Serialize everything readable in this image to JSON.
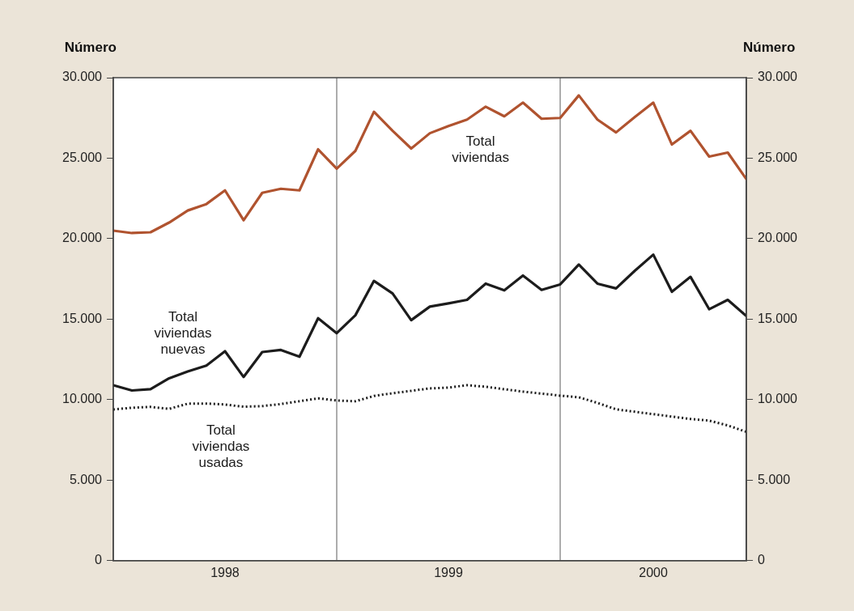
{
  "chart_data": {
    "type": "line",
    "ylabel": "Número",
    "y2label": "Número",
    "x": [
      "1998-01",
      "1998-02",
      "1998-03",
      "1998-04",
      "1998-05",
      "1998-06",
      "1998-07",
      "1998-08",
      "1998-09",
      "1998-10",
      "1998-11",
      "1998-12",
      "1999-01",
      "1999-02",
      "1999-03",
      "1999-04",
      "1999-05",
      "1999-06",
      "1999-07",
      "1999-08",
      "1999-09",
      "1999-10",
      "1999-11",
      "1999-12",
      "2000-01",
      "2000-02",
      "2000-03",
      "2000-04",
      "2000-05",
      "2000-06",
      "2000-07",
      "2000-08",
      "2000-09",
      "2000-10",
      "2000-11"
    ],
    "xlim": [
      "1998-01",
      "2000-11"
    ],
    "xticks": [
      {
        "value": "1998-07",
        "label": "1998"
      },
      {
        "value": "1999-07",
        "label": "1999"
      },
      {
        "value": "2000-06",
        "label": "2000"
      }
    ],
    "ylim": [
      0,
      30000
    ],
    "yticks": [
      0,
      {
        "value": 5000,
        "label": "5.000"
      },
      {
        "value": 10000,
        "label": "10.000"
      },
      {
        "value": 15000,
        "label": "15.000"
      },
      {
        "value": 20000,
        "label": "20.000"
      },
      {
        "value": 25000,
        "label": "25.000"
      },
      {
        "value": 30000,
        "label": "30.000"
      }
    ],
    "y2lim": [
      0,
      30000
    ],
    "y2ticks": [
      0,
      {
        "value": 5000,
        "label": "5.000"
      },
      {
        "value": 10000,
        "label": "10.000"
      },
      {
        "value": 15000,
        "label": "15.000"
      },
      {
        "value": 20000,
        "label": "20.000"
      },
      {
        "value": 25000,
        "label": "25.000"
      },
      {
        "value": 30000,
        "label": "30.000"
      }
    ],
    "ref_lines": [
      {
        "axis": "x",
        "value": "1999-01",
        "color": "#777777"
      },
      {
        "axis": "x",
        "value": "2000-01",
        "color": "#777777"
      }
    ],
    "grid": false,
    "legend": false,
    "marker": "none",
    "series": [
      {
        "name": "Total viviendas",
        "color": "#b0532f",
        "line_style": "solid",
        "values": [
          20500,
          20350,
          20400,
          21000,
          21750,
          22150,
          23000,
          21150,
          22850,
          23100,
          23000,
          25550,
          24350,
          25450,
          27880,
          26700,
          25600,
          26550,
          27000,
          27400,
          28200,
          27600,
          28450,
          27450,
          27500,
          28900,
          27400,
          26600,
          27550,
          28450,
          25850,
          26700,
          25100,
          25350,
          23700
        ]
      },
      {
        "name": "Total viviendas nuevas",
        "color": "#1c1c1c",
        "line_style": "solid",
        "values": [
          10900,
          10570,
          10650,
          11330,
          11750,
          12120,
          13010,
          11410,
          12960,
          13090,
          12670,
          15060,
          14130,
          15240,
          17380,
          16600,
          14940,
          15780,
          15980,
          16200,
          17210,
          16790,
          17710,
          16820,
          17160,
          18390,
          17210,
          16910,
          18000,
          19010,
          16700,
          17630,
          15620,
          16200,
          15190
        ]
      },
      {
        "name": "Total viviendas usadas",
        "color": "#1c1c1c",
        "line_style": "dotted",
        "values": [
          9390,
          9500,
          9550,
          9430,
          9750,
          9760,
          9700,
          9560,
          9600,
          9730,
          9900,
          10080,
          9950,
          9900,
          10230,
          10400,
          10550,
          10700,
          10750,
          10900,
          10800,
          10650,
          10500,
          10380,
          10250,
          10150,
          9800,
          9400,
          9250,
          9100,
          8950,
          8800,
          8700,
          8400,
          8000
        ]
      }
    ]
  }
}
